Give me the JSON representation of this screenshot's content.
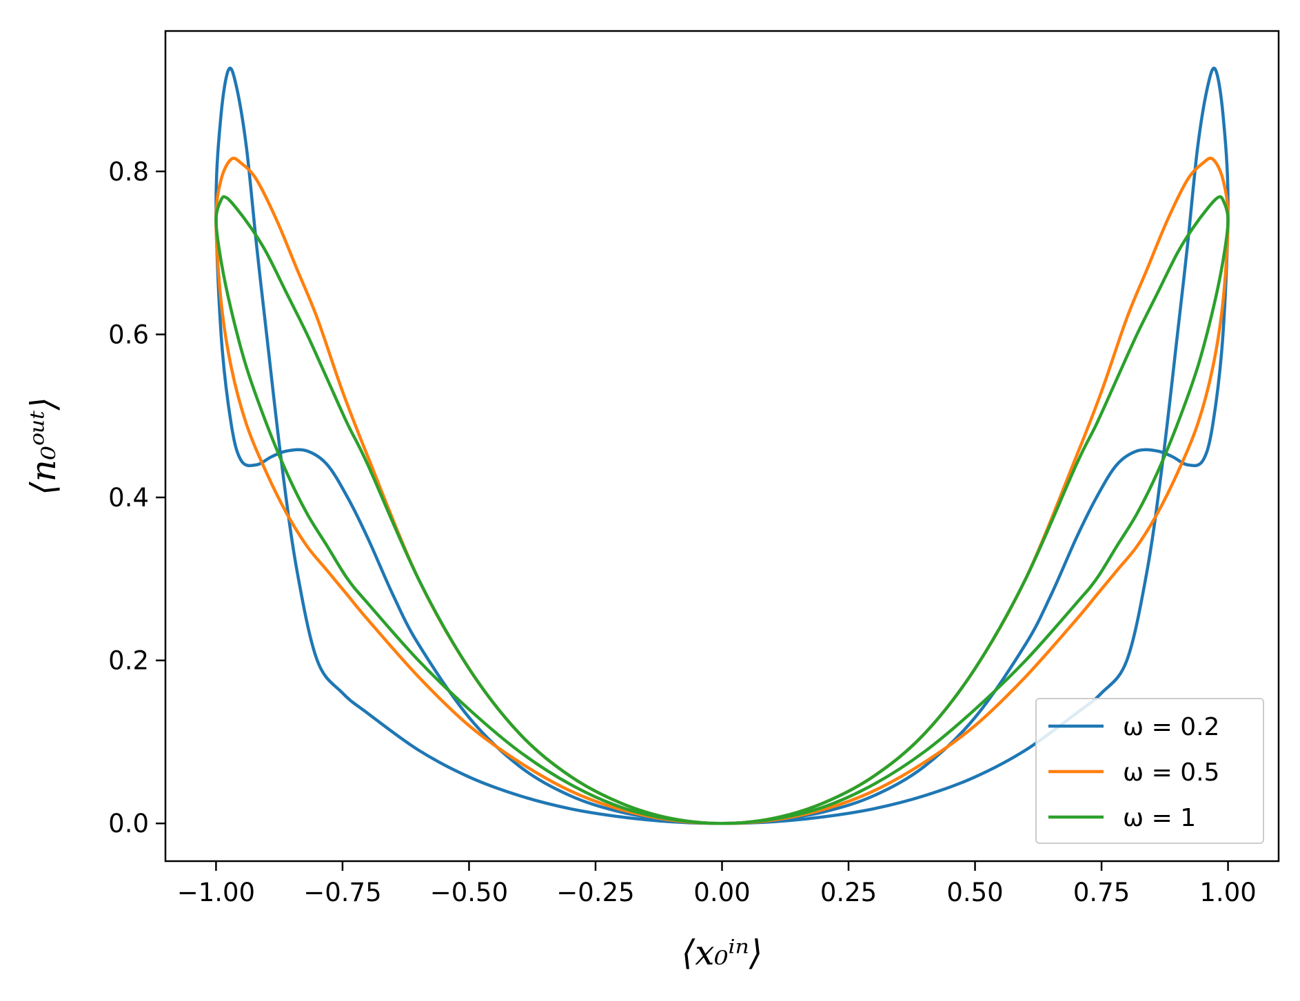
{
  "chart_data": {
    "type": "line",
    "title": "",
    "xlabel": "⟨x₀ⁱⁿ⟩",
    "ylabel": "⟨n₀ᵒᵘᵗ⟩",
    "xlim": [
      -1.1,
      1.1
    ],
    "ylim": [
      -0.0463,
      0.9723
    ],
    "x_ticks": [
      -1.0,
      -0.75,
      -0.5,
      -0.25,
      0.0,
      0.25,
      0.5,
      0.75,
      1.0
    ],
    "x_tick_labels": [
      "−1.00",
      "−0.75",
      "−0.50",
      "−0.25",
      "0.00",
      "0.25",
      "0.50",
      "0.75",
      "1.00"
    ],
    "y_ticks": [
      0.0,
      0.2,
      0.4,
      0.6,
      0.8
    ],
    "y_tick_labels": [
      "0.0",
      "0.2",
      "0.4",
      "0.6",
      "0.8"
    ],
    "grid": false,
    "legend_position": "lower-right",
    "series": [
      {
        "name": "ω = 0.2",
        "label": "ω = 0.2",
        "color": "#1f77b4",
        "closed": true,
        "x": [
          -1.0,
          -0.99,
          -0.975,
          -0.96,
          -0.94,
          -0.92,
          -0.9,
          -0.87,
          -0.84,
          -0.8,
          -0.75,
          -0.7,
          -0.6,
          -0.5,
          -0.4,
          -0.3,
          -0.2,
          -0.1,
          0.0,
          0.1,
          0.2,
          0.3,
          0.4,
          0.5,
          0.6,
          0.7,
          0.75,
          0.8,
          0.84,
          0.87,
          0.9,
          0.92,
          0.94,
          0.96,
          0.975,
          0.99,
          1.0,
          0.99,
          0.97,
          0.95,
          0.92,
          0.89,
          0.86,
          0.82,
          0.78,
          0.74,
          0.7,
          0.65,
          0.6,
          0.5,
          0.4,
          0.3,
          0.2,
          0.1,
          0.0,
          -0.1,
          -0.2,
          -0.3,
          -0.4,
          -0.5,
          -0.6,
          -0.65,
          -0.7,
          -0.74,
          -0.78,
          -0.82,
          -0.86,
          -0.89,
          -0.92,
          -0.95,
          -0.97,
          -0.99
        ],
        "y": [
          0.76,
          0.87,
          0.925,
          0.905,
          0.83,
          0.71,
          0.6,
          0.44,
          0.31,
          0.2,
          0.16,
          0.135,
          0.09,
          0.057,
          0.034,
          0.018,
          0.008,
          0.002,
          0.0,
          0.002,
          0.008,
          0.018,
          0.034,
          0.057,
          0.09,
          0.135,
          0.16,
          0.2,
          0.31,
          0.44,
          0.6,
          0.71,
          0.83,
          0.905,
          0.925,
          0.87,
          0.76,
          0.6,
          0.49,
          0.445,
          0.44,
          0.45,
          0.457,
          0.457,
          0.44,
          0.4,
          0.35,
          0.28,
          0.22,
          0.13,
          0.07,
          0.034,
          0.014,
          0.004,
          0.0,
          0.004,
          0.014,
          0.034,
          0.07,
          0.13,
          0.22,
          0.28,
          0.35,
          0.4,
          0.44,
          0.457,
          0.457,
          0.45,
          0.44,
          0.445,
          0.49,
          0.6
        ]
      },
      {
        "name": "ω = 0.5",
        "label": "ω = 0.5",
        "color": "#ff7f0e",
        "closed": true,
        "x": [
          -1.0,
          -0.99,
          -0.97,
          -0.95,
          -0.92,
          -0.88,
          -0.84,
          -0.8,
          -0.75,
          -0.7,
          -0.6,
          -0.5,
          -0.4,
          -0.3,
          -0.2,
          -0.1,
          0.0,
          0.1,
          0.2,
          0.3,
          0.4,
          0.5,
          0.6,
          0.7,
          0.75,
          0.8,
          0.84,
          0.88,
          0.92,
          0.95,
          0.97,
          0.99,
          1.0,
          0.99,
          0.97,
          0.94,
          0.9,
          0.86,
          0.82,
          0.78,
          0.74,
          0.7,
          0.6,
          0.5,
          0.4,
          0.3,
          0.2,
          0.1,
          0.0,
          -0.1,
          -0.2,
          -0.3,
          -0.4,
          -0.5,
          -0.6,
          -0.7,
          -0.74,
          -0.78,
          -0.82,
          -0.86,
          -0.9,
          -0.94,
          -0.97,
          -0.99
        ],
        "y": [
          0.74,
          0.79,
          0.815,
          0.81,
          0.79,
          0.74,
          0.68,
          0.62,
          0.53,
          0.45,
          0.3,
          0.19,
          0.11,
          0.058,
          0.025,
          0.006,
          0.0,
          0.006,
          0.025,
          0.058,
          0.11,
          0.19,
          0.3,
          0.45,
          0.53,
          0.62,
          0.68,
          0.74,
          0.79,
          0.81,
          0.815,
          0.79,
          0.74,
          0.64,
          0.56,
          0.49,
          0.43,
          0.38,
          0.34,
          0.31,
          0.28,
          0.25,
          0.18,
          0.12,
          0.075,
          0.04,
          0.017,
          0.004,
          0.0,
          0.004,
          0.017,
          0.04,
          0.075,
          0.12,
          0.18,
          0.25,
          0.28,
          0.31,
          0.34,
          0.38,
          0.43,
          0.49,
          0.56,
          0.64
        ]
      },
      {
        "name": "ω = 1",
        "label": "ω = 1",
        "color": "#2ca02c",
        "closed": true,
        "x": [
          -1.0,
          -0.99,
          -0.98,
          -0.96,
          -0.93,
          -0.9,
          -0.86,
          -0.82,
          -0.78,
          -0.74,
          -0.7,
          -0.6,
          -0.5,
          -0.4,
          -0.3,
          -0.2,
          -0.1,
          0.0,
          0.1,
          0.2,
          0.3,
          0.4,
          0.5,
          0.6,
          0.7,
          0.74,
          0.78,
          0.82,
          0.86,
          0.9,
          0.93,
          0.96,
          0.98,
          0.99,
          1.0,
          0.99,
          0.97,
          0.94,
          0.9,
          0.86,
          0.82,
          0.78,
          0.74,
          0.7,
          0.6,
          0.5,
          0.4,
          0.3,
          0.2,
          0.1,
          0.0,
          -0.1,
          -0.2,
          -0.3,
          -0.4,
          -0.5,
          -0.6,
          -0.7,
          -0.74,
          -0.78,
          -0.82,
          -0.86,
          -0.9,
          -0.94,
          -0.97,
          -0.99
        ],
        "y": [
          0.74,
          0.765,
          0.768,
          0.755,
          0.73,
          0.7,
          0.65,
          0.6,
          0.545,
          0.49,
          0.44,
          0.3,
          0.19,
          0.11,
          0.058,
          0.025,
          0.006,
          0.0,
          0.006,
          0.025,
          0.058,
          0.11,
          0.19,
          0.3,
          0.44,
          0.49,
          0.545,
          0.6,
          0.65,
          0.7,
          0.73,
          0.755,
          0.768,
          0.765,
          0.74,
          0.69,
          0.63,
          0.56,
          0.49,
          0.43,
          0.38,
          0.34,
          0.3,
          0.27,
          0.2,
          0.14,
          0.088,
          0.048,
          0.02,
          0.005,
          0.0,
          0.005,
          0.02,
          0.048,
          0.088,
          0.14,
          0.2,
          0.27,
          0.3,
          0.34,
          0.38,
          0.43,
          0.49,
          0.56,
          0.63,
          0.69
        ]
      }
    ]
  }
}
